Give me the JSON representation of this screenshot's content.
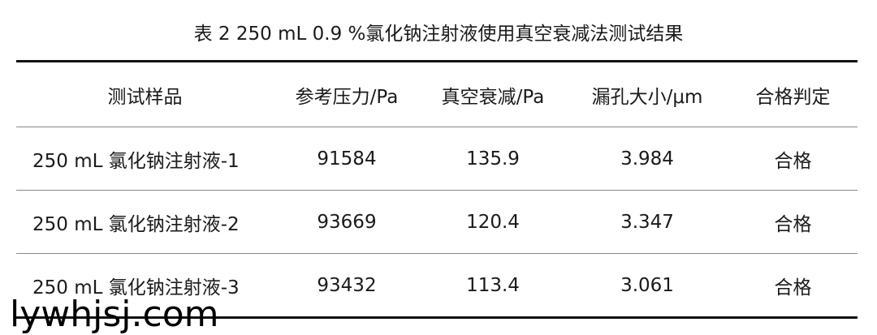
{
  "title": "表 2 250 mL 0.9 %氯化钠注射液使用真空衰减法测试结果",
  "table": {
    "headers": [
      "测试样品",
      "参考压力/Pa",
      "真空衰减/Pa",
      "漏孔大小/μm",
      "合格判定"
    ],
    "rows": [
      [
        "250 mL  氯化钠注射液-1",
        "91584",
        "135.9",
        "3.984",
        "合格"
      ],
      [
        "250 mL  氯化钠注射液-2",
        "93669",
        "120.4",
        "3.347",
        "合格"
      ],
      [
        "250 mL  氯化钠注射液-3",
        "93432",
        "113.4",
        "3.061",
        "合格"
      ]
    ]
  },
  "watermark": "lywhjsj.com"
}
